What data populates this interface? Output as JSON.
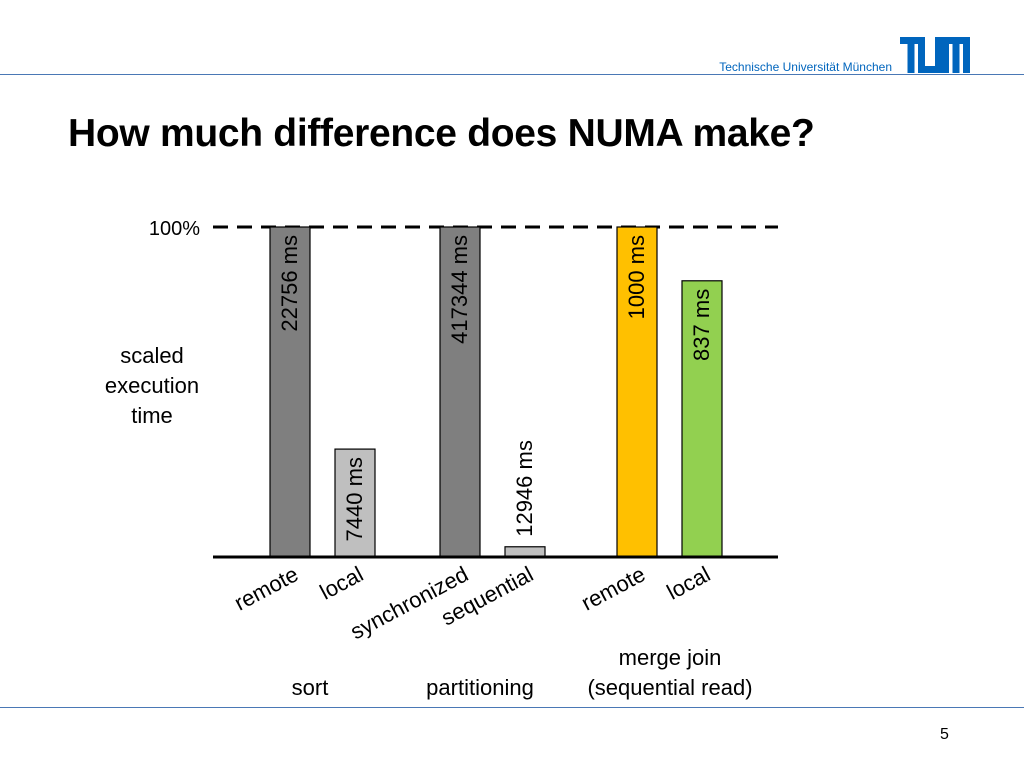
{
  "slide": {
    "header_institution": "Technische Universität München",
    "logo_text": "TUM",
    "title": "How much difference does NUMA make?",
    "page_number": "5"
  },
  "colors": {
    "tum_blue": "#0065bd",
    "remote_dark_gray": "#7f7f7f",
    "local_light_gray": "#bfbfbf",
    "merge_remote_orange": "#ffc000",
    "merge_local_green": "#92d050"
  },
  "chart_data": {
    "type": "bar",
    "ylabel": "scaled execution time",
    "reference_line": {
      "label": "100%",
      "value": 100,
      "style": "dashed"
    },
    "ylim": [
      0,
      100
    ],
    "grid": false,
    "groups": [
      {
        "name": "sort",
        "bars": [
          {
            "category": "remote",
            "value": 100,
            "label": "22756 ms",
            "color": "#7f7f7f"
          },
          {
            "category": "local",
            "value": 32.7,
            "label": "7440 ms",
            "color": "#bfbfbf"
          }
        ]
      },
      {
        "name": "partitioning",
        "bars": [
          {
            "category": "synchronized",
            "value": 100,
            "label": "417344 ms",
            "color": "#7f7f7f"
          },
          {
            "category": "sequential",
            "value": 3.1,
            "label": "12946 ms",
            "color": "#bfbfbf"
          }
        ]
      },
      {
        "name": "merge join\n(sequential read)",
        "bars": [
          {
            "category": "remote",
            "value": 100,
            "label": "1000 ms",
            "color": "#ffc000"
          },
          {
            "category": "local",
            "value": 83.7,
            "label": "837 ms",
            "color": "#92d050"
          }
        ]
      }
    ]
  }
}
